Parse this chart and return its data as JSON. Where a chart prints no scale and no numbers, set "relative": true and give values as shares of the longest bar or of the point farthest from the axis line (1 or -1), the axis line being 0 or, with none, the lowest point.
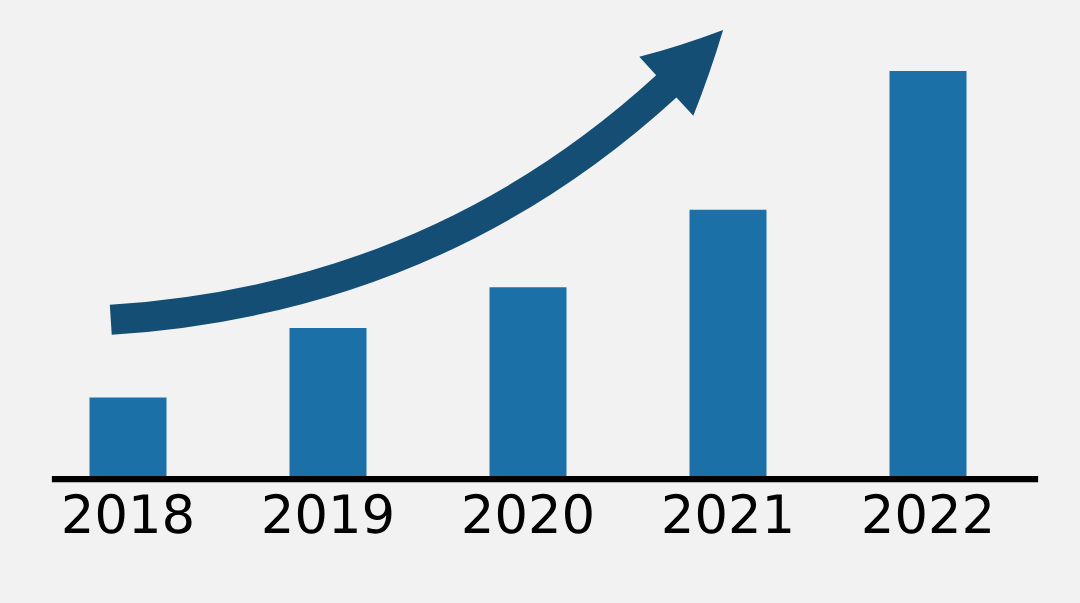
{
  "chart_data": {
    "type": "bar",
    "relative": true,
    "categories": [
      "2018",
      "2019",
      "2020",
      "2021",
      "2022"
    ],
    "values": [
      0.2,
      0.37,
      0.47,
      0.66,
      1.0
    ],
    "color": "#1c70a8"
  }
}
